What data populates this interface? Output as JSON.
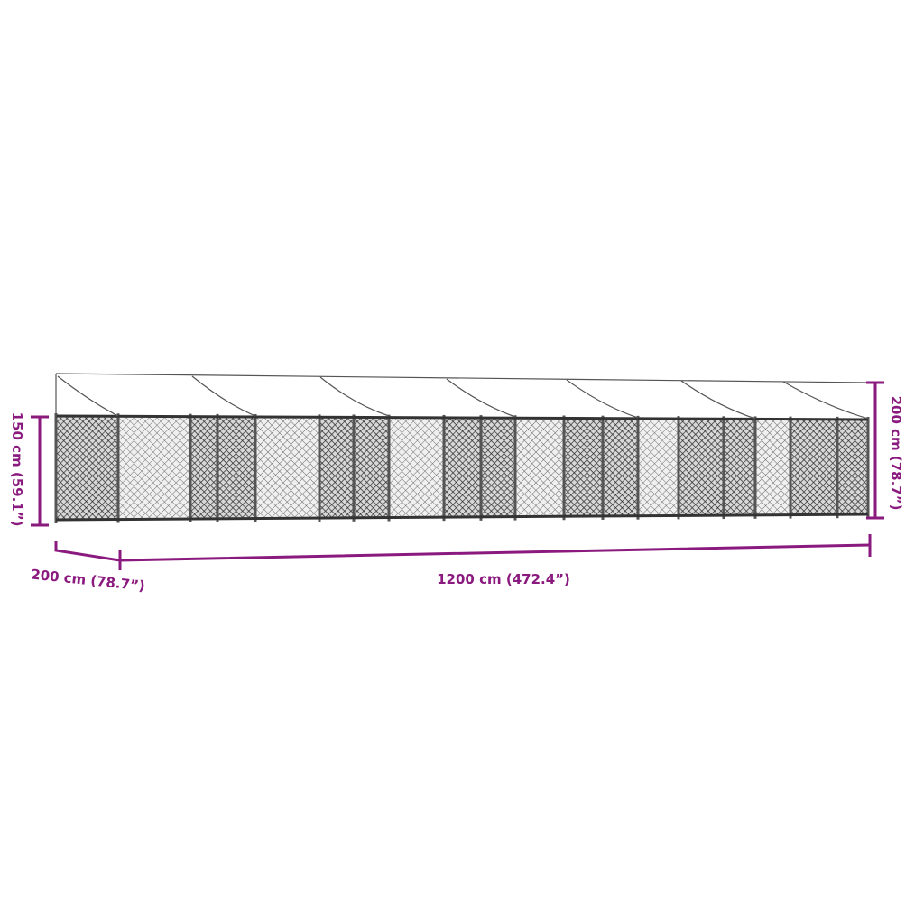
{
  "colors": {
    "dimension": "#8b1a7f",
    "structure": "#444444",
    "mesh": "#333333"
  },
  "dimensions": {
    "side_height": "150 cm (59.1”)",
    "depth": "200 cm (78.7”)",
    "length": "1200 cm (472.4”)",
    "total_height": "200 cm (78.7”)"
  }
}
